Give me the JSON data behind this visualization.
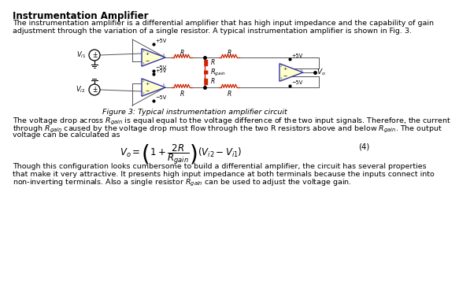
{
  "title": "Instrumentation Amplifier",
  "intro_text": "The instrumentation amplifier is a differential amplifier that has high input impedance and the capability of gain\nadjustment through the variation of a single resistor. A typical instrumentation amplifier is shown in Fig. 3.",
  "figure_caption": "Figure 3: Typical instrumentation amplifier circuit",
  "body_line1": "The voltage drop across $R_{gain}$ is equal equal to the voltage difference of the two input signals. Therefore, the current",
  "body_line2": "through $R_{gain}$ caused by the voltage drop must flow through the two R resistors above and below $R_{gain}$. The output",
  "body_line3": "voltage can be calculated as",
  "equation": "$V_o = \\left(1 + \\dfrac{2R}{R_{gain}}\\right)\\left(V_{i2} - V_{i1}\\right)$",
  "equation_label": "(4)",
  "body2_line1": "Though this configuration looks cumbersome to build a differential amplifier, the circuit has several properties",
  "body2_line2": "that make it very attractive. It presents high input impedance at both terminals because the inputs connect into",
  "body2_line3": "non-inverting terminals. Also a single resistor $R_{gain}$ can be used to adjust the voltage gain.",
  "bg_color": "#ffffff",
  "text_color": "#000000",
  "wire_color": "#555555",
  "resistor_color": "#cc2200",
  "opamp_fill": "#ffffcc",
  "opamp_edge": "#3333aa"
}
